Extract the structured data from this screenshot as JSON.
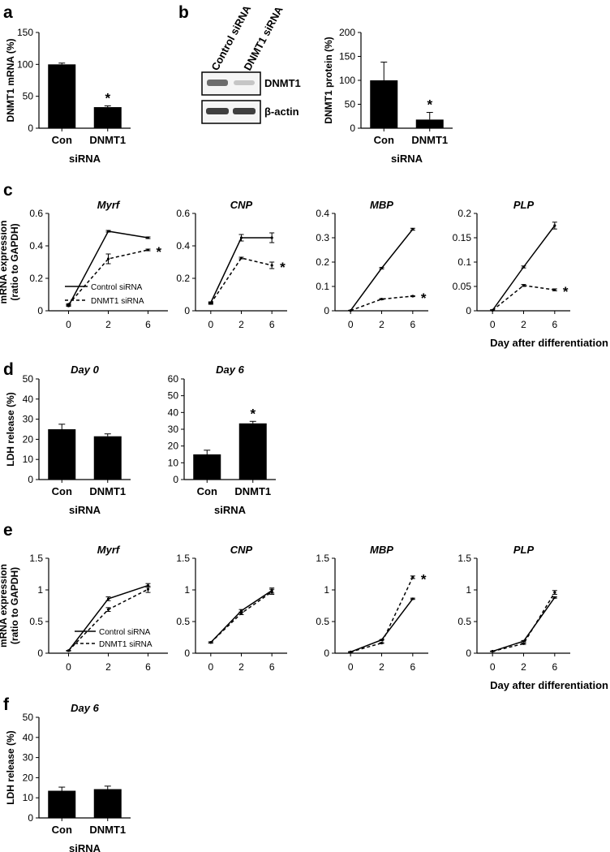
{
  "panel_labels": {
    "a": "a",
    "b": "b",
    "c": "c",
    "d": "d",
    "e": "e",
    "f": "f"
  },
  "western_blot": {
    "lanes": [
      "Control siRNA",
      "DNMT1 siRNA"
    ],
    "bands": [
      "DNMT1",
      "β-actin"
    ]
  },
  "legend": {
    "solid": "Control siRNA",
    "dashed": "DNMT1 siRNA"
  },
  "colors": {
    "bar": "#000000",
    "axis": "#000000",
    "line": "#000000"
  },
  "chart_data": [
    {
      "id": "a",
      "type": "bar",
      "categories": [
        "Con",
        "DNMT1"
      ],
      "values": [
        100,
        33
      ],
      "errors": [
        2,
        2
      ],
      "ylabel": "DNMT1 mRNA (%)",
      "xlabel": "siRNA",
      "ylim": [
        0,
        150
      ],
      "yticks": [
        "0",
        "50",
        "100",
        "150"
      ],
      "significance": [
        "",
        "*"
      ]
    },
    {
      "id": "b",
      "type": "bar",
      "categories": [
        "Con",
        "DNMT1"
      ],
      "values": [
        100,
        18
      ],
      "errors": [
        38,
        15
      ],
      "ylabel": "DNMT1 protein (%)",
      "xlabel": "siRNA",
      "ylim": [
        0,
        200
      ],
      "yticks": [
        "0",
        "50",
        "100",
        "150",
        "200"
      ],
      "significance": [
        "",
        "*"
      ]
    },
    {
      "id": "c1",
      "type": "line",
      "title": "Myrf",
      "x": [
        "0",
        "2",
        "6"
      ],
      "ylim": [
        0,
        0.6
      ],
      "yticks": [
        "0",
        "0.2",
        "0.4",
        "0.6"
      ],
      "ylabel": "mRNA expression (ratio to GAPDH)",
      "series": [
        {
          "name": "Control siRNA",
          "values": [
            0.03,
            0.49,
            0.45
          ],
          "errors": [
            0.003,
            0.005,
            0.005
          ]
        },
        {
          "name": "DNMT1 siRNA",
          "values": [
            0.04,
            0.32,
            0.375
          ],
          "errors": [
            0.003,
            0.03,
            0.005
          ]
        }
      ],
      "significance": "*"
    },
    {
      "id": "c2",
      "type": "line",
      "title": "CNP",
      "x": [
        "0",
        "2",
        "6"
      ],
      "ylim": [
        0,
        0.6
      ],
      "yticks": [
        "0",
        "0.2",
        "0.4",
        "0.6"
      ],
      "series": [
        {
          "name": "Control siRNA",
          "values": [
            0.05,
            0.45,
            0.45
          ],
          "errors": [
            0.005,
            0.02,
            0.03
          ]
        },
        {
          "name": "DNMT1 siRNA",
          "values": [
            0.045,
            0.325,
            0.28
          ],
          "errors": [
            0.005,
            0.005,
            0.02
          ]
        }
      ],
      "significance": "*"
    },
    {
      "id": "c3",
      "type": "line",
      "title": "MBP",
      "x": [
        "0",
        "2",
        "6"
      ],
      "ylim": [
        0,
        0.4
      ],
      "yticks": [
        "0",
        "0.1",
        "0.2",
        "0.3",
        "0.4"
      ],
      "series": [
        {
          "name": "Control siRNA",
          "values": [
            0.001,
            0.175,
            0.335
          ],
          "errors": [
            0.001,
            0.003,
            0.004
          ]
        },
        {
          "name": "DNMT1 siRNA",
          "values": [
            0.001,
            0.048,
            0.06
          ],
          "errors": [
            0.001,
            0.002,
            0.002
          ]
        }
      ],
      "significance": "*"
    },
    {
      "id": "c4",
      "type": "line",
      "title": "PLP",
      "x": [
        "0",
        "2",
        "6"
      ],
      "ylim": [
        0,
        0.2
      ],
      "yticks": [
        "0",
        "0.05",
        "0.1",
        "0.15",
        "0.2"
      ],
      "xlabel": "Day after differentiation",
      "series": [
        {
          "name": "Control siRNA",
          "values": [
            0.001,
            0.09,
            0.175
          ],
          "errors": [
            0.001,
            0.002,
            0.007
          ]
        },
        {
          "name": "DNMT1 siRNA",
          "values": [
            0.001,
            0.052,
            0.043
          ],
          "errors": [
            0.001,
            0.002,
            0.002
          ]
        }
      ],
      "significance": "*"
    },
    {
      "id": "d1",
      "type": "bar",
      "title": "Day 0",
      "categories": [
        "Con",
        "DNMT1"
      ],
      "values": [
        25,
        21.5
      ],
      "errors": [
        2.5,
        1.2
      ],
      "ylabel": "LDH release (%)",
      "xlabel": "siRNA",
      "ylim": [
        0,
        50
      ],
      "yticks": [
        "0",
        "10",
        "20",
        "30",
        "40",
        "50"
      ],
      "significance": [
        "",
        ""
      ]
    },
    {
      "id": "d2",
      "type": "bar",
      "title": "Day 6",
      "categories": [
        "Con",
        "DNMT1"
      ],
      "values": [
        15,
        33.5
      ],
      "errors": [
        2.5,
        1.2
      ],
      "xlabel": "siRNA",
      "ylim": [
        0,
        60
      ],
      "yticks": [
        "0",
        "10",
        "20",
        "30",
        "40",
        "50",
        "60"
      ],
      "significance": [
        "",
        "*"
      ]
    },
    {
      "id": "e1",
      "type": "line",
      "title": "Myrf",
      "x": [
        "0",
        "2",
        "6"
      ],
      "ylim": [
        0,
        1.5
      ],
      "yticks": [
        "0",
        "0.5",
        "1",
        "1.5"
      ],
      "ylabel": "mRNA expression (ratio to GAPDH)",
      "series": [
        {
          "name": "Control siRNA",
          "values": [
            0.04,
            0.86,
            1.07
          ],
          "errors": [
            0.005,
            0.03,
            0.03
          ]
        },
        {
          "name": "DNMT1 siRNA",
          "values": [
            0.04,
            0.69,
            1.01
          ],
          "errors": [
            0.005,
            0.03,
            0.05
          ]
        }
      ],
      "significance": ""
    },
    {
      "id": "e2",
      "type": "line",
      "title": "CNP",
      "x": [
        "0",
        "2",
        "6"
      ],
      "ylim": [
        0,
        1.5
      ],
      "yticks": [
        "0",
        "0.5",
        "1",
        "1.5"
      ],
      "series": [
        {
          "name": "Control siRNA",
          "values": [
            0.17,
            0.67,
            0.99
          ],
          "errors": [
            0.01,
            0.02,
            0.04
          ]
        },
        {
          "name": "DNMT1 siRNA",
          "values": [
            0.17,
            0.63,
            0.97
          ],
          "errors": [
            0.01,
            0.02,
            0.04
          ]
        }
      ],
      "significance": ""
    },
    {
      "id": "e3",
      "type": "line",
      "title": "MBP",
      "x": [
        "0",
        "2",
        "6"
      ],
      "ylim": [
        0,
        1.5
      ],
      "yticks": [
        "0",
        "0.5",
        "1",
        "1.5"
      ],
      "series": [
        {
          "name": "Control siRNA",
          "values": [
            0.02,
            0.21,
            0.86
          ],
          "errors": [
            0.003,
            0.005,
            0.01
          ]
        },
        {
          "name": "DNMT1 siRNA",
          "values": [
            0.02,
            0.16,
            1.2
          ],
          "errors": [
            0.003,
            0.005,
            0.02
          ]
        }
      ],
      "significance": "*"
    },
    {
      "id": "e4",
      "type": "line",
      "title": "PLP",
      "x": [
        "0",
        "2",
        "6"
      ],
      "ylim": [
        0,
        1.5
      ],
      "yticks": [
        "0",
        "0.5",
        "1",
        "1.5"
      ],
      "xlabel": "Day after differentiation",
      "series": [
        {
          "name": "Control siRNA",
          "values": [
            0.03,
            0.19,
            0.88
          ],
          "errors": [
            0.003,
            0.01,
            0.01
          ]
        },
        {
          "name": "DNMT1 siRNA",
          "values": [
            0.03,
            0.15,
            0.96
          ],
          "errors": [
            0.003,
            0.01,
            0.03
          ]
        }
      ],
      "significance": ""
    },
    {
      "id": "f",
      "type": "bar",
      "title": "Day 6",
      "categories": [
        "Con",
        "DNMT1"
      ],
      "values": [
        13.5,
        14.3
      ],
      "errors": [
        1.8,
        1.5
      ],
      "ylabel": "LDH release (%)",
      "xlabel": "siRNA",
      "ylim": [
        0,
        50
      ],
      "yticks": [
        "0",
        "10",
        "20",
        "30",
        "40",
        "50"
      ],
      "significance": [
        "",
        ""
      ]
    }
  ]
}
